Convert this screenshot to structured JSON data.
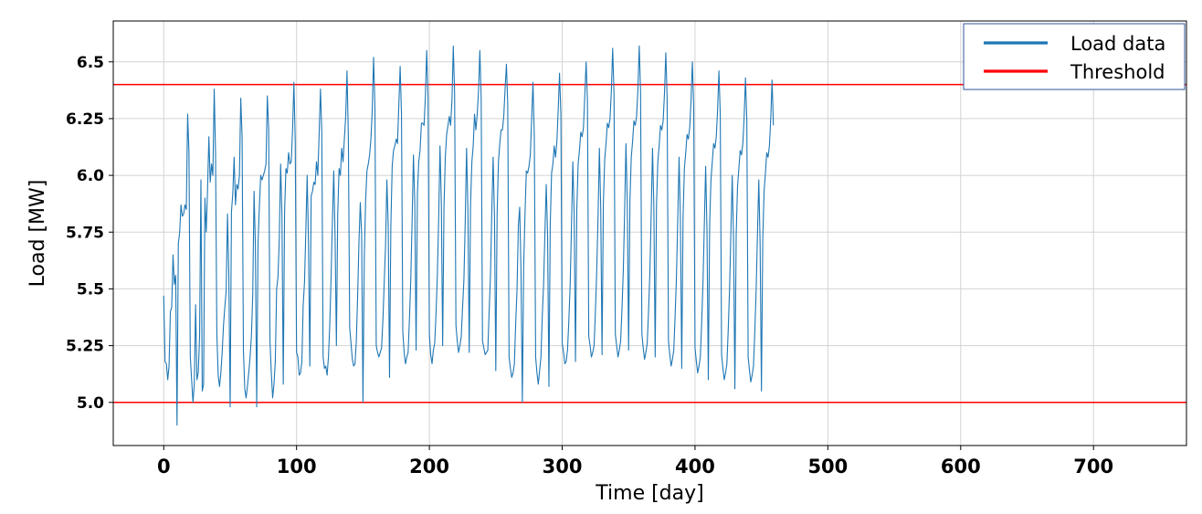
{
  "chart_data": {
    "type": "line",
    "xlabel": "Time [day]",
    "ylabel": "Load [MW]",
    "xlim": [
      -38,
      770
    ],
    "ylim": [
      4.81,
      6.68
    ],
    "x_ticks": [
      0,
      100,
      200,
      300,
      400,
      500,
      600,
      700
    ],
    "x_tick_labels": [
      "0",
      "100",
      "200",
      "300",
      "400",
      "500",
      "600",
      "700"
    ],
    "y_ticks": [
      5.0,
      5.25,
      5.5,
      5.75,
      6.0,
      6.25,
      6.5
    ],
    "y_tick_labels": [
      "5.0",
      "5.25",
      "5.5",
      "5.75",
      "6.0",
      "6.25",
      "6.5"
    ],
    "grid": true,
    "legend_position": "top-right",
    "series": [
      {
        "name": "Load data",
        "color": "#1f77b4",
        "x_start": 0,
        "x_step": 1,
        "values": [
          5.47,
          5.18,
          5.17,
          5.1,
          5.16,
          5.4,
          5.42,
          5.65,
          5.52,
          5.56,
          4.9,
          5.7,
          5.75,
          5.87,
          5.82,
          5.83,
          5.87,
          5.85,
          6.27,
          6.1,
          5.2,
          5.1,
          5.0,
          5.08,
          5.43,
          5.1,
          5.13,
          5.29,
          5.98,
          5.05,
          5.08,
          5.9,
          5.75,
          5.94,
          6.17,
          5.97,
          6.05,
          6.0,
          6.38,
          6.1,
          5.3,
          5.12,
          5.07,
          5.13,
          5.22,
          5.34,
          5.42,
          5.49,
          5.83,
          5.57,
          4.98,
          5.84,
          5.92,
          6.08,
          5.87,
          5.96,
          5.94,
          6.0,
          6.34,
          6.17,
          5.23,
          5.06,
          5.02,
          5.07,
          5.13,
          5.2,
          5.29,
          5.47,
          5.93,
          5.69,
          4.98,
          5.7,
          5.86,
          6.0,
          5.98,
          6.0,
          6.02,
          6.05,
          6.35,
          6.2,
          5.27,
          5.13,
          5.02,
          5.08,
          5.18,
          5.5,
          5.55,
          5.72,
          6.05,
          5.83,
          5.08,
          5.84,
          6.03,
          6.01,
          6.1,
          6.05,
          6.06,
          6.2,
          6.41,
          6.15,
          5.22,
          5.2,
          5.12,
          5.13,
          5.18,
          5.43,
          5.53,
          5.76,
          6.0,
          5.7,
          5.16,
          5.91,
          5.93,
          5.97,
          5.96,
          6.06,
          6.0,
          6.18,
          6.38,
          6.19,
          5.2,
          5.15,
          5.16,
          5.12,
          5.2,
          5.34,
          5.55,
          5.8,
          6.02,
          5.73,
          5.25,
          5.83,
          6.03,
          6.0,
          6.12,
          6.06,
          6.16,
          6.26,
          6.46,
          6.17,
          5.33,
          5.26,
          5.19,
          5.16,
          5.17,
          5.27,
          5.47,
          5.71,
          5.88,
          5.74,
          5.0,
          5.64,
          5.89,
          6.02,
          6.05,
          6.09,
          6.16,
          6.29,
          6.52,
          6.3,
          5.25,
          5.22,
          5.2,
          5.22,
          5.24,
          5.36,
          5.53,
          5.69,
          5.98,
          5.78,
          5.11,
          5.78,
          6.04,
          6.11,
          6.13,
          6.16,
          6.14,
          6.31,
          6.48,
          6.27,
          5.31,
          5.22,
          5.17,
          5.2,
          5.22,
          5.37,
          5.54,
          5.8,
          6.09,
          5.88,
          5.23,
          5.92,
          6.06,
          6.11,
          6.23,
          6.23,
          6.22,
          6.35,
          6.55,
          6.34,
          5.3,
          5.21,
          5.17,
          5.23,
          5.26,
          5.39,
          5.56,
          5.81,
          6.13,
          5.88,
          5.25,
          5.86,
          6.08,
          6.18,
          6.22,
          6.26,
          6.22,
          6.33,
          6.57,
          6.36,
          5.34,
          5.27,
          5.22,
          5.25,
          5.29,
          5.42,
          5.54,
          5.8,
          6.12,
          5.85,
          5.22,
          5.87,
          6.06,
          6.13,
          6.27,
          6.2,
          6.27,
          6.37,
          6.55,
          6.34,
          5.27,
          5.24,
          5.21,
          5.22,
          5.23,
          5.4,
          5.56,
          5.84,
          6.08,
          5.82,
          5.14,
          5.83,
          6.06,
          6.14,
          6.2,
          6.2,
          6.26,
          6.38,
          6.49,
          6.31,
          5.2,
          5.15,
          5.11,
          5.13,
          5.17,
          5.35,
          5.5,
          5.78,
          5.86,
          5.57,
          5.0,
          5.6,
          5.83,
          6.02,
          6.01,
          6.04,
          6.09,
          6.25,
          6.41,
          6.17,
          5.2,
          5.13,
          5.08,
          5.14,
          5.2,
          5.38,
          5.52,
          5.75,
          5.96,
          5.73,
          5.07,
          5.78,
          6.01,
          6.05,
          6.13,
          6.08,
          6.15,
          6.29,
          6.45,
          6.27,
          5.26,
          5.22,
          5.17,
          5.18,
          5.23,
          5.36,
          5.52,
          5.78,
          6.06,
          5.83,
          5.18,
          5.85,
          6.05,
          6.11,
          6.19,
          6.17,
          6.21,
          6.35,
          6.5,
          6.33,
          5.29,
          5.25,
          5.2,
          5.22,
          5.25,
          5.4,
          5.58,
          5.82,
          6.12,
          5.86,
          5.21,
          5.88,
          6.07,
          6.14,
          6.23,
          6.21,
          6.25,
          6.37,
          6.56,
          6.36,
          5.3,
          5.25,
          5.2,
          5.23,
          5.27,
          5.41,
          5.58,
          5.84,
          6.14,
          5.88,
          5.23,
          5.89,
          6.08,
          6.15,
          6.24,
          6.22,
          6.26,
          6.38,
          6.57,
          6.37,
          5.3,
          5.24,
          5.19,
          5.22,
          5.26,
          5.4,
          5.57,
          5.83,
          6.12,
          5.86,
          5.2,
          5.87,
          6.06,
          6.13,
          6.22,
          6.2,
          6.24,
          6.36,
          6.54,
          6.34,
          5.27,
          5.21,
          5.16,
          5.19,
          5.23,
          5.38,
          5.55,
          5.81,
          6.08,
          5.8,
          5.15,
          5.82,
          6.03,
          6.1,
          6.18,
          6.16,
          6.21,
          6.33,
          6.5,
          6.3,
          5.24,
          5.18,
          5.13,
          5.16,
          5.2,
          5.35,
          5.53,
          5.78,
          6.04,
          5.76,
          5.1,
          5.78,
          5.98,
          6.06,
          6.14,
          6.12,
          6.17,
          6.29,
          6.46,
          6.27,
          5.21,
          5.15,
          5.1,
          5.13,
          5.17,
          5.32,
          5.5,
          5.75,
          6.0,
          5.72,
          5.06,
          5.74,
          5.95,
          6.03,
          6.11,
          6.09,
          6.14,
          6.26,
          6.43,
          6.24,
          5.2,
          5.14,
          5.09,
          5.12,
          5.16,
          5.31,
          5.49,
          5.74,
          5.98,
          5.7,
          5.05,
          5.72,
          5.93,
          6.01,
          6.1,
          6.08,
          6.13,
          6.25,
          6.42,
          6.22
        ]
      },
      {
        "name": "Threshold",
        "color": "#ff0000",
        "constant": 6.4
      },
      {
        "name": "Threshold",
        "color": "#ff0000",
        "constant": 5.0,
        "show_in_legend": false
      }
    ]
  }
}
